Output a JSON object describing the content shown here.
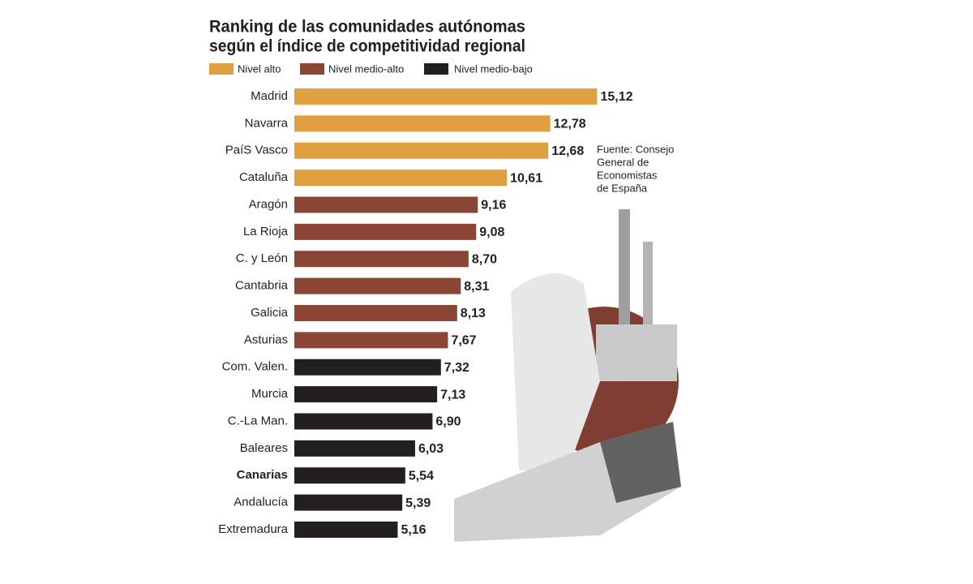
{
  "chart_data": {
    "type": "bar",
    "orientation": "horizontal",
    "title": [
      "Ranking de las comunidades autónomas",
      "según el índice de competitividad regional"
    ],
    "categories": [
      "Madrid",
      "Navarra",
      "PaíS Vasco",
      "Cataluña",
      "Aragón",
      "La Rioja",
      "C. y León",
      "Cantabria",
      "Galicia",
      "Asturias",
      "Com. Valen.",
      "Murcia",
      "C.-La Man.",
      "Baleares",
      "Canarias",
      "Andalucía",
      "Extremadura"
    ],
    "series": [
      {
        "name": "Nivel alto",
        "color": "#e0a040",
        "values": [
          15.12,
          12.78,
          12.68,
          10.61,
          null,
          null,
          null,
          null,
          null,
          null,
          null,
          null,
          null,
          null,
          null,
          null,
          null
        ],
        "value_labels": [
          "15,12",
          "12,78",
          "12,68",
          "10,61",
          null,
          null,
          null,
          null,
          null,
          null,
          null,
          null,
          null,
          null,
          null,
          null,
          null
        ]
      },
      {
        "name": "Nivel medio-alto",
        "color": "#8b4535",
        "values": [
          null,
          null,
          null,
          null,
          9.16,
          9.08,
          8.7,
          8.31,
          8.13,
          7.67,
          null,
          null,
          null,
          null,
          null,
          null,
          null
        ],
        "value_labels": [
          null,
          null,
          null,
          null,
          "9,16",
          "9,08",
          "8,70",
          "8,31",
          "8,13",
          "7,67",
          null,
          null,
          null,
          null,
          null,
          null,
          null
        ]
      },
      {
        "name": "Nivel medio-bajo",
        "color": "#231f20",
        "values": [
          null,
          null,
          null,
          null,
          null,
          null,
          null,
          null,
          null,
          null,
          7.32,
          7.13,
          6.9,
          6.03,
          5.54,
          5.39,
          5.16
        ],
        "value_labels": [
          null,
          null,
          null,
          null,
          null,
          null,
          null,
          null,
          null,
          null,
          "7,32",
          "7,13",
          "6,90",
          "6,03",
          "5,54",
          "5,39",
          "5,16"
        ]
      }
    ],
    "highlight_index": 14,
    "source": [
      "Fuente: Consejo",
      "General de",
      "Economistas",
      "de España"
    ]
  }
}
